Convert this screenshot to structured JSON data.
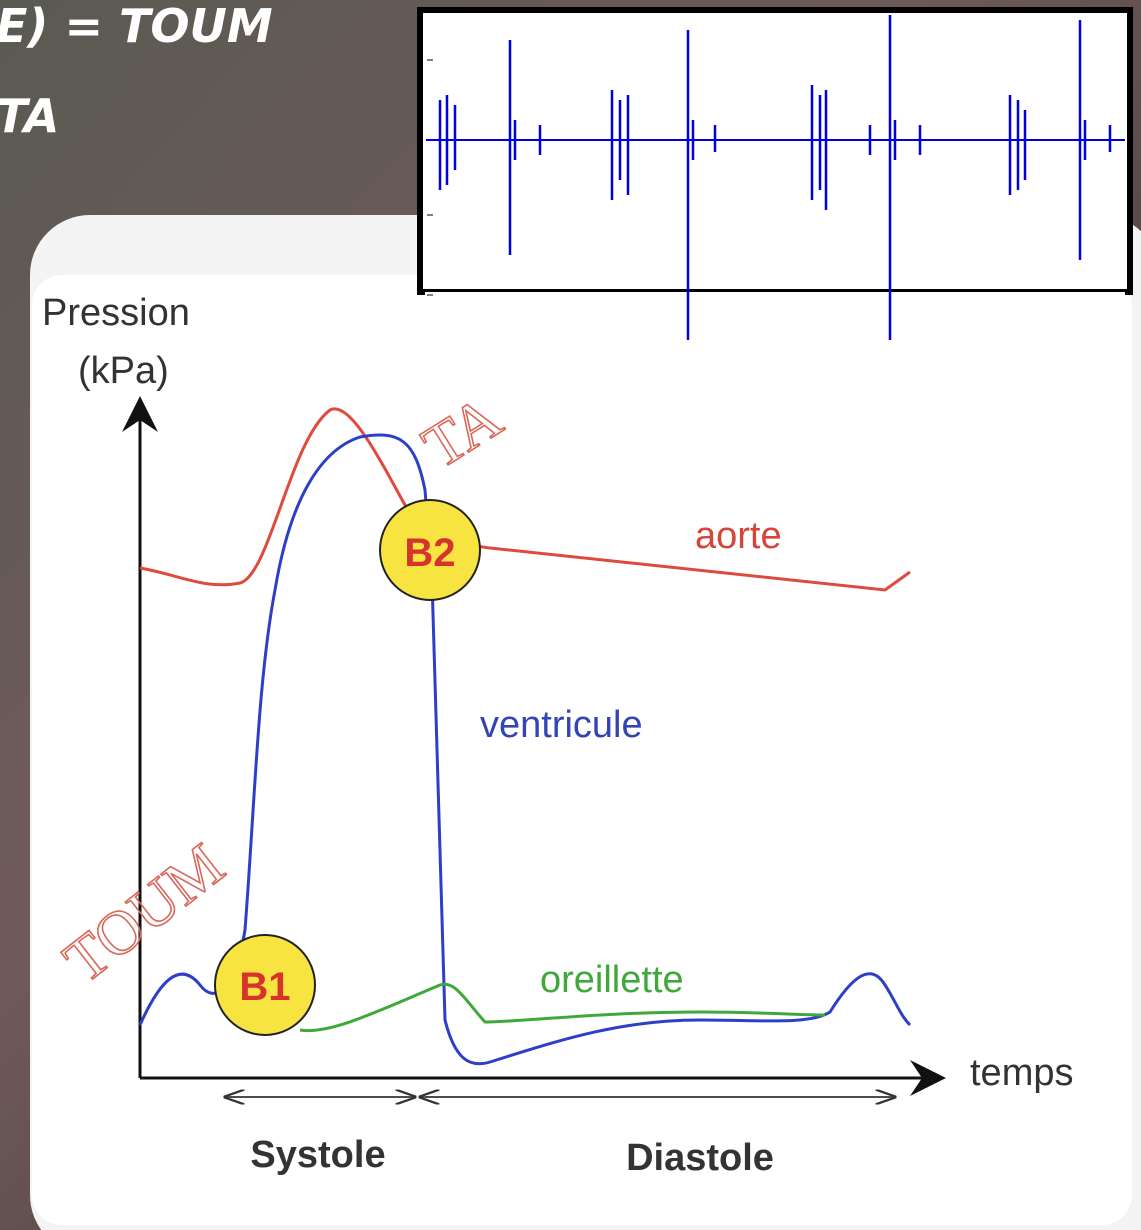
{
  "header": {
    "lines": [
      "E) = TOUM",
      "TA"
    ]
  },
  "diagram": {
    "y_axis_label": [
      "Pression",
      "(kPa)"
    ],
    "x_axis_label": "temps",
    "curves": {
      "aorte": "aorte",
      "ventricule": "ventricule",
      "oreillette": "oreillette"
    },
    "markers": [
      "B1",
      "B2"
    ],
    "annotations": [
      "TOUM",
      "TA"
    ],
    "phases": [
      "Systole",
      "Diastole"
    ]
  }
}
